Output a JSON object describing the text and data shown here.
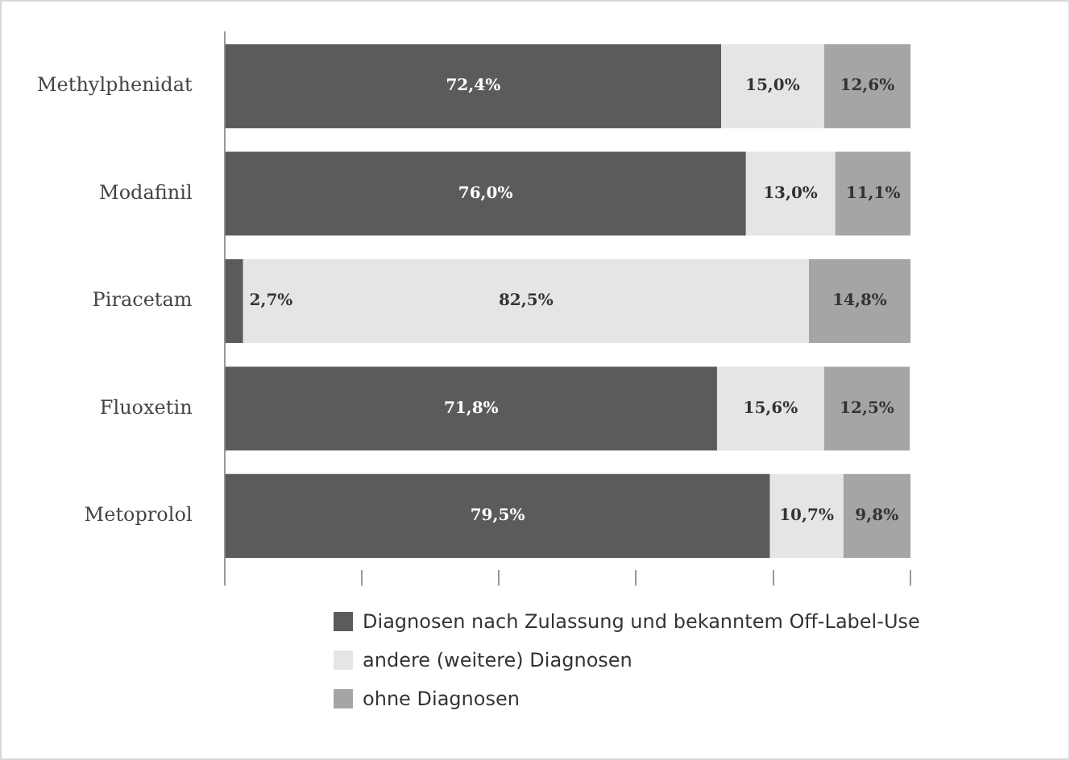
{
  "chart_data": {
    "type": "bar",
    "orientation": "horizontal",
    "stacked": true,
    "categories": [
      "Methylphenidat",
      "Modafinil",
      "Piracetam",
      "Fluoxetin",
      "Metoprolol"
    ],
    "series": [
      {
        "name": "Diagnosen nach Zulassung und bekanntem Off-Label-Use",
        "color": "#5b5b5b",
        "values": [
          72.4,
          76.0,
          2.7,
          71.8,
          79.5
        ],
        "value_labels": [
          "72,4%",
          "76,0%",
          "2,7%",
          "71,8%",
          "79,5%"
        ]
      },
      {
        "name": "andere (weitere) Diagnosen",
        "color": "#e5e5e5",
        "values": [
          15.0,
          13.0,
          82.5,
          15.6,
          10.7
        ],
        "value_labels": [
          "15,0%",
          "13,0%",
          "82,5%",
          "15,6%",
          "10,7%"
        ]
      },
      {
        "name": "ohne Diagnosen",
        "color": "#a5a5a5",
        "values": [
          12.6,
          11.1,
          14.8,
          12.5,
          9.8
        ],
        "value_labels": [
          "12,6%",
          "11,1%",
          "14,8%",
          "12,5%",
          "9,8%"
        ]
      }
    ],
    "xlim": [
      0,
      100
    ],
    "xticks": [
      {
        "value": 0,
        "label": null
      },
      {
        "value": 20,
        "label": null
      },
      {
        "value": 40,
        "label": null
      },
      {
        "value": 60,
        "label": null
      },
      {
        "value": 80,
        "label": null
      },
      {
        "value": 100,
        "label": null
      }
    ],
    "tick_labels": "y",
    "grid": false,
    "legend": "bottom"
  }
}
